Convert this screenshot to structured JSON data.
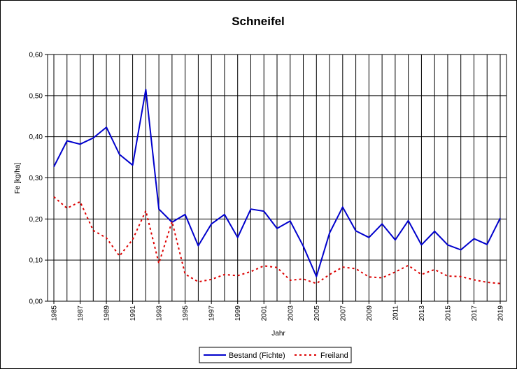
{
  "chart_data": {
    "type": "line",
    "title": "Schneifel",
    "xlabel": "Jahr",
    "ylabel": "Fe [kg/ha]",
    "x": [
      1985,
      1986,
      1987,
      1988,
      1989,
      1990,
      1991,
      1992,
      1993,
      1994,
      1995,
      1996,
      1997,
      1998,
      1999,
      2000,
      2001,
      2002,
      2003,
      2004,
      2005,
      2006,
      2007,
      2008,
      2009,
      2010,
      2011,
      2012,
      2013,
      2014,
      2015,
      2016,
      2017,
      2018,
      2019
    ],
    "ylim": [
      0,
      0.6
    ],
    "y_ticks": [
      "0,00",
      "0,10",
      "0,20",
      "0,30",
      "0,40",
      "0,50",
      "0,60"
    ],
    "x_tick_labels": [
      "1985",
      "1987",
      "1989",
      "1991",
      "1993",
      "1995",
      "1997",
      "1999",
      "2001",
      "2003",
      "2005",
      "2007",
      "2009",
      "2011",
      "2013",
      "2015",
      "2017",
      "2019"
    ],
    "grid": "vertical and horizontal",
    "legend_position": "bottom",
    "series": [
      {
        "name": "Bestand (Fichte)",
        "color": "#0000cc",
        "style": "solid",
        "values": [
          0.327,
          0.39,
          0.382,
          0.397,
          0.423,
          0.357,
          0.331,
          0.515,
          0.224,
          0.192,
          0.211,
          0.135,
          0.188,
          0.211,
          0.155,
          0.224,
          0.219,
          0.177,
          0.195,
          0.134,
          0.06,
          0.166,
          0.229,
          0.171,
          0.155,
          0.188,
          0.149,
          0.196,
          0.137,
          0.17,
          0.137,
          0.125,
          0.152,
          0.138,
          0.202
        ]
      },
      {
        "name": "Freiland",
        "color": "#dd0000",
        "style": "dotted",
        "values": [
          0.254,
          0.226,
          0.242,
          0.172,
          0.154,
          0.11,
          0.15,
          0.22,
          0.092,
          0.194,
          0.066,
          0.047,
          0.053,
          0.065,
          0.062,
          0.072,
          0.086,
          0.082,
          0.051,
          0.054,
          0.043,
          0.065,
          0.083,
          0.079,
          0.059,
          0.057,
          0.071,
          0.087,
          0.065,
          0.077,
          0.061,
          0.06,
          0.052,
          0.046,
          0.043
        ]
      }
    ]
  }
}
